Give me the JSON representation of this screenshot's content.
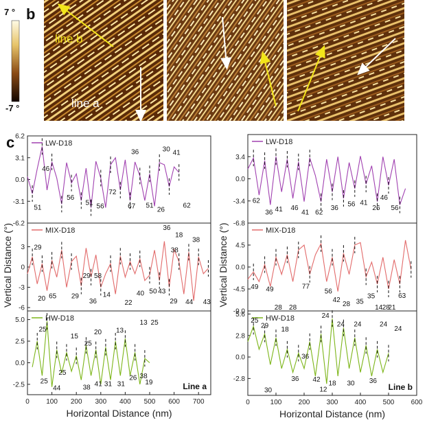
{
  "panel_b": {
    "label": "b",
    "scale_max": "7 °",
    "scale_min": "-7 °",
    "line_b_label": "line b",
    "line_a_label": "line a"
  },
  "panel_c": {
    "label": "c",
    "ylabel": "Vertical Distance (°)",
    "xlabel": "Horizontal Distance (nm)",
    "colors": {
      "LW": "#a040b0",
      "MIX": "#e26a6a",
      "HW": "#7cb518"
    },
    "left": {
      "line_label": "Line a",
      "xlim": [
        0,
        750
      ],
      "xticks": [
        0,
        100,
        200,
        300,
        400,
        500,
        600,
        700
      ],
      "rows": [
        {
          "name": "LW-D18",
          "ylim": [
            -6.2,
            6.2
          ],
          "yticks": [
            "6.2",
            "3.1",
            "0.0",
            "-3.1",
            "-6.2"
          ],
          "annotations": [
            {
              "t": "46",
              "x": 75,
              "y": 1.2
            },
            {
              "t": "36",
              "x": 440,
              "y": 3.6
            },
            {
              "t": "30",
              "x": 568,
              "y": 4.0
            },
            {
              "t": "41",
              "x": 610,
              "y": 3.5
            },
            {
              "t": "51",
              "x": 42,
              "y": -4.3
            },
            {
              "t": "56",
              "x": 176,
              "y": -2.9
            },
            {
              "t": "51",
              "x": 253,
              "y": -3.6
            },
            {
              "t": "56",
              "x": 298,
              "y": -4.1
            },
            {
              "t": "72",
              "x": 348,
              "y": -2.1
            },
            {
              "t": "67",
              "x": 426,
              "y": -4.1
            },
            {
              "t": "51",
              "x": 500,
              "y": -4.0
            },
            {
              "t": "26",
              "x": 546,
              "y": -4.6
            },
            {
              "t": "62",
              "x": 652,
              "y": -4.0
            }
          ]
        },
        {
          "name": "MIX-D18",
          "ylim": [
            -6.5,
            6.5
          ],
          "yticks": [
            "3",
            "0",
            "-3",
            "-6"
          ],
          "annotations": [
            {
              "t": "29",
              "x": 42,
              "y": 2.6
            },
            {
              "t": "36",
              "x": 570,
              "y": 5.6
            },
            {
              "t": "18",
              "x": 620,
              "y": 4.4
            },
            {
              "t": "38",
              "x": 602,
              "y": 2.2
            },
            {
              "t": "38",
              "x": 690,
              "y": 3.7
            },
            {
              "t": "29",
              "x": 242,
              "y": -1.6
            },
            {
              "t": "58",
              "x": 288,
              "y": -1.6
            },
            {
              "t": "20",
              "x": 58,
              "y": -5.0
            },
            {
              "t": "65",
              "x": 103,
              "y": -4.6
            },
            {
              "t": "29",
              "x": 195,
              "y": -4.6
            },
            {
              "t": "14",
              "x": 324,
              "y": -4.4
            },
            {
              "t": "36",
              "x": 268,
              "y": -5.4
            },
            {
              "t": "22",
              "x": 413,
              "y": -5.6
            },
            {
              "t": "40",
              "x": 462,
              "y": -4.2
            },
            {
              "t": "50",
              "x": 514,
              "y": -3.9
            },
            {
              "t": "43",
              "x": 550,
              "y": -3.9
            },
            {
              "t": "29",
              "x": 598,
              "y": -5.4
            },
            {
              "t": "44",
              "x": 662,
              "y": -5.5
            },
            {
              "t": "43",
              "x": 734,
              "y": -5.5
            }
          ]
        },
        {
          "name": "HW-D18",
          "ylim": [
            -3.7,
            6.0
          ],
          "yticks": [
            "5.0",
            "2.5",
            "0.0",
            "-2.5"
          ],
          "annotations": [
            {
              "t": "25",
              "x": 62,
              "y": 3.6
            },
            {
              "t": "15",
              "x": 192,
              "y": 2.8
            },
            {
              "t": "20",
              "x": 288,
              "y": 3.3
            },
            {
              "t": "13",
              "x": 378,
              "y": 3.5
            },
            {
              "t": "13",
              "x": 475,
              "y": 4.4
            },
            {
              "t": "25",
              "x": 520,
              "y": 4.4
            },
            {
              "t": "25",
              "x": 248,
              "y": 2.0
            },
            {
              "t": "25",
              "x": 143,
              "y": -1.4
            },
            {
              "t": "25",
              "x": 68,
              "y": -2.4
            },
            {
              "t": "44",
              "x": 120,
              "y": -3.2
            },
            {
              "t": "38",
              "x": 242,
              "y": -3.1
            },
            {
              "t": "41",
              "x": 290,
              "y": -2.7
            },
            {
              "t": "31",
              "x": 330,
              "y": -2.7
            },
            {
              "t": "31",
              "x": 383,
              "y": -2.7
            },
            {
              "t": "26",
              "x": 432,
              "y": -2.0
            },
            {
              "t": "38",
              "x": 475,
              "y": -1.8
            },
            {
              "t": "19",
              "x": 497,
              "y": -2.5
            }
          ]
        }
      ]
    },
    "right": {
      "line_label": "Line b",
      "xlim": [
        0,
        600
      ],
      "xticks": [
        0,
        100,
        200,
        300,
        400,
        500,
        600
      ],
      "rows": [
        {
          "name": "LW-D18",
          "ylim": [
            -6.8,
            6.8
          ],
          "yticks": [
            "3.4",
            "0.0",
            "-3.4",
            "-6.8"
          ],
          "annotations": [
            {
              "t": "62",
              "x": 30,
              "y": -3.7
            },
            {
              "t": "36",
              "x": 75,
              "y": -5.5
            },
            {
              "t": "41",
              "x": 110,
              "y": -5.0
            },
            {
              "t": "46",
              "x": 166,
              "y": -4.8
            },
            {
              "t": "41",
              "x": 204,
              "y": -5.5
            },
            {
              "t": "62",
              "x": 253,
              "y": -5.5
            },
            {
              "t": "36",
              "x": 308,
              "y": -4.8
            },
            {
              "t": "56",
              "x": 368,
              "y": -4.2
            },
            {
              "t": "41",
              "x": 412,
              "y": -4.0
            },
            {
              "t": "46",
              "x": 484,
              "y": -3.2
            },
            {
              "t": "26",
              "x": 456,
              "y": -4.8
            },
            {
              "t": "56",
              "x": 522,
              "y": -4.8
            }
          ]
        },
        {
          "name": "MIX-D18",
          "ylim": [
            -9.0,
            9.0
          ],
          "yticks": [
            "4.5",
            "0.0",
            "-4.5",
            "-9.0"
          ],
          "annotations": [
            {
              "t": "49",
              "x": 24,
              "y": -4.5
            },
            {
              "t": "49",
              "x": 78,
              "y": -5.0
            },
            {
              "t": "77",
              "x": 206,
              "y": -4.4
            },
            {
              "t": "56",
              "x": 286,
              "y": -5.4
            },
            {
              "t": "28",
              "x": 108,
              "y": -9.0
            },
            {
              "t": "28",
              "x": 160,
              "y": -9.0
            },
            {
              "t": "42",
              "x": 315,
              "y": -7.2
            },
            {
              "t": "28",
              "x": 350,
              "y": -8.0
            },
            {
              "t": "35",
              "x": 398,
              "y": -7.5
            },
            {
              "t": "35",
              "x": 438,
              "y": -6.4
            },
            {
              "t": "14",
              "x": 465,
              "y": -8.8
            },
            {
              "t": "28",
              "x": 491,
              "y": -8.8
            },
            {
              "t": "21",
              "x": 512,
              "y": -8.8
            },
            {
              "t": "63",
              "x": 548,
              "y": -6.3
            }
          ]
        },
        {
          "name": "HW-D18",
          "ylim": [
            -5.0,
            6.0
          ],
          "yticks": [
            "5.6",
            "2.8",
            "0.0",
            "-2.8"
          ],
          "annotations": [
            {
              "t": "25",
              "x": 24,
              "y": 4.5
            },
            {
              "t": "29",
              "x": 60,
              "y": 3.8
            },
            {
              "t": "18",
              "x": 132,
              "y": 3.3
            },
            {
              "t": "24",
              "x": 276,
              "y": 5.1
            },
            {
              "t": "24",
              "x": 330,
              "y": 4.0
            },
            {
              "t": "24",
              "x": 390,
              "y": 4.0
            },
            {
              "t": "24",
              "x": 482,
              "y": 4.0
            },
            {
              "t": "24",
              "x": 534,
              "y": 3.4
            },
            {
              "t": "36",
              "x": 204,
              "y": -0.2
            },
            {
              "t": "36",
              "x": 168,
              "y": -3.1
            },
            {
              "t": "30",
              "x": 72,
              "y": -4.6
            },
            {
              "t": "42",
              "x": 244,
              "y": -3.2
            },
            {
              "t": "18",
              "x": 300,
              "y": -3.7
            },
            {
              "t": "30",
              "x": 366,
              "y": -3.7
            },
            {
              "t": "36",
              "x": 445,
              "y": -3.4
            },
            {
              "t": "12",
              "x": 268,
              "y": -4.5
            }
          ]
        }
      ]
    }
  },
  "chart_data": {
    "type": "line",
    "title": "",
    "xlabel": "Horizontal Distance (nm)",
    "ylabel": "Vertical Distance (°)",
    "series": [
      {
        "name": "LW-D18 (Line a)",
        "x": [
          0,
          20,
          40,
          60,
          80,
          100,
          120,
          140,
          160,
          180,
          200,
          220,
          240,
          260,
          280,
          300,
          320,
          340,
          360,
          380,
          400,
          420,
          440,
          460,
          480,
          500,
          520,
          540,
          560,
          580,
          600,
          620
        ],
        "y": [
          0.4,
          -2.0,
          1.5,
          4.7,
          -1.5,
          2.5,
          0.2,
          -3.5,
          2.4,
          -0.5,
          0.8,
          -3.0,
          1.6,
          -4.0,
          2.6,
          0.2,
          -4.0,
          2.1,
          3.1,
          -1.5,
          2.8,
          -3.0,
          2.5,
          0.5,
          -3.0,
          0.8,
          -3.8,
          2.4,
          2.1,
          -1.0,
          1.8,
          1.0
        ]
      },
      {
        "name": "MIX-D18 (Line a)",
        "x": [
          0,
          20,
          40,
          60,
          80,
          100,
          120,
          140,
          160,
          180,
          200,
          220,
          240,
          260,
          280,
          300,
          320,
          340,
          360,
          380,
          400,
          420,
          440,
          460,
          480,
          500,
          520,
          540,
          560,
          580,
          600,
          620,
          640,
          660,
          680,
          700,
          720,
          740
        ],
        "y": [
          -1.0,
          1.5,
          -2.5,
          0.5,
          -3.5,
          1.0,
          -1.5,
          2.5,
          -3.0,
          0.8,
          1.6,
          -2.8,
          2.8,
          -1.5,
          1.8,
          -3.0,
          -1.0,
          0.5,
          -4.0,
          1.6,
          -1.5,
          0.8,
          -1.0,
          1.2,
          -2.0,
          -1.2,
          2.5,
          -2.0,
          3.8,
          -3.0,
          2.6,
          0.8,
          -4.0,
          2.2,
          -5.0,
          1.5,
          -1.0,
          -0.2
        ]
      },
      {
        "name": "HW-D18 (Line a)",
        "x": [
          20,
          40,
          60,
          80,
          100,
          120,
          140,
          160,
          180,
          200,
          220,
          240,
          260,
          280,
          300,
          320,
          340,
          360,
          380,
          400,
          420,
          440,
          460,
          480,
          500
        ],
        "y": [
          -0.5,
          2.5,
          -1.5,
          4.8,
          -2.8,
          1.5,
          -1.2,
          1.2,
          -1.0,
          0.8,
          -2.0,
          2.0,
          -1.5,
          1.5,
          -2.5,
          1.8,
          -2.0,
          2.5,
          -1.5,
          2.8,
          -1.5,
          1.2,
          -2.5,
          0.5,
          0.0
        ]
      },
      {
        "name": "LW-D18 (Line b)",
        "x": [
          0,
          20,
          40,
          60,
          80,
          100,
          120,
          140,
          160,
          180,
          200,
          220,
          240,
          260,
          280,
          300,
          320,
          340,
          360,
          380,
          400,
          420,
          440,
          460,
          480,
          500,
          520,
          540,
          560
        ],
        "y": [
          1.5,
          3.2,
          -2.5,
          2.8,
          -4.0,
          3.4,
          -2.0,
          3.0,
          -3.0,
          2.6,
          -3.5,
          3.2,
          0.5,
          -3.5,
          3.0,
          -2.0,
          3.4,
          -3.0,
          2.5,
          -1.5,
          3.5,
          -0.8,
          2.0,
          -3.5,
          3.4,
          -1.0,
          3.0,
          -4.0,
          -1.5
        ]
      },
      {
        "name": "MIX-D18 (Line b)",
        "x": [
          0,
          20,
          40,
          60,
          80,
          100,
          120,
          140,
          160,
          180,
          200,
          220,
          240,
          260,
          280,
          300,
          320,
          340,
          360,
          380,
          400,
          420,
          440,
          460,
          480,
          500,
          520,
          540,
          560,
          580
        ],
        "y": [
          -2.5,
          -1.0,
          -3.0,
          0.5,
          -4.0,
          2.0,
          -1.5,
          2.5,
          -3.0,
          3.5,
          4.5,
          -1.5,
          2.5,
          4.8,
          -3.0,
          2.0,
          -5.0,
          2.8,
          -1.5,
          4.5,
          5.0,
          -2.0,
          1.0,
          -3.5,
          2.0,
          -4.5,
          1.5,
          -3.5,
          5.5,
          -0.5
        ]
      },
      {
        "name": "HW-D18 (Line b)",
        "x": [
          0,
          20,
          40,
          60,
          80,
          100,
          120,
          140,
          160,
          180,
          200,
          220,
          240,
          260,
          280,
          300,
          320,
          340,
          360,
          380,
          400,
          420,
          440,
          460,
          480,
          500
        ],
        "y": [
          2.0,
          4.0,
          1.0,
          3.0,
          -1.0,
          2.5,
          -1.5,
          1.0,
          -2.0,
          0.5,
          -1.5,
          2.0,
          -2.5,
          3.0,
          -3.5,
          5.0,
          -2.5,
          3.8,
          -1.5,
          2.5,
          -2.0,
          1.5,
          -2.5,
          1.0,
          -2.0,
          0.5
        ]
      }
    ]
  }
}
